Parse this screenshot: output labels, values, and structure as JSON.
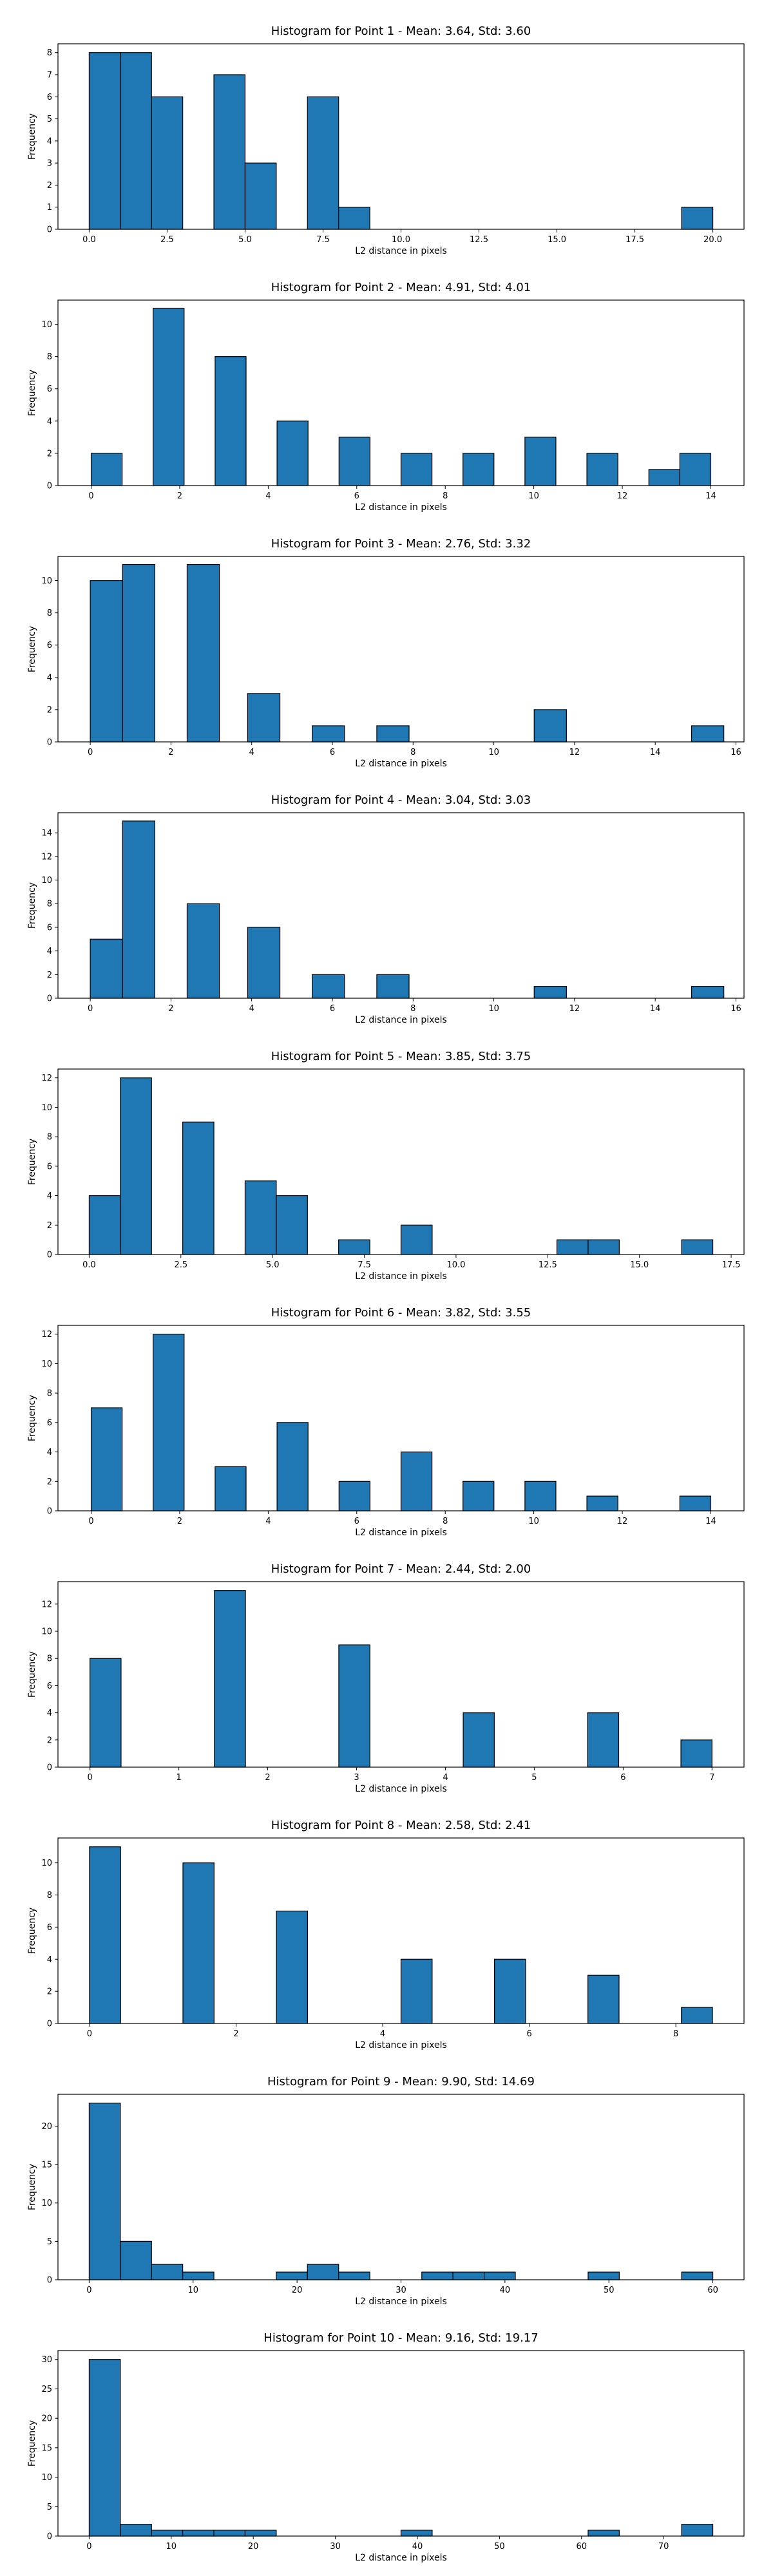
{
  "colors": {
    "bar": "#1f77b4",
    "edge": "#000000",
    "background": "#ffffff"
  },
  "chart_data": [
    {
      "type": "bar",
      "title": "Histogram for Point 1 - Mean: 3.64, Std: 3.60",
      "xlabel": "L2 distance in pixels",
      "ylabel": "Frequency",
      "xlim": [
        -1.0,
        21.0
      ],
      "ylim": [
        0,
        8.4
      ],
      "xticks": [
        0.0,
        2.5,
        5.0,
        7.5,
        10.0,
        12.5,
        15.0,
        17.5,
        20.0
      ],
      "xtick_labels": [
        "0.0",
        "2.5",
        "5.0",
        "7.5",
        "10.0",
        "12.5",
        "15.0",
        "17.5",
        "20.0"
      ],
      "yticks": [
        0,
        1,
        2,
        3,
        4,
        5,
        6,
        7,
        8
      ],
      "ytick_labels": [
        "0",
        "1",
        "2",
        "3",
        "4",
        "5",
        "6",
        "7",
        "8"
      ],
      "bin_width": 1.0,
      "bins": [
        {
          "x": 0.0,
          "count": 8
        },
        {
          "x": 1.0,
          "count": 8
        },
        {
          "x": 2.0,
          "count": 6
        },
        {
          "x": 4.0,
          "count": 7
        },
        {
          "x": 5.0,
          "count": 3
        },
        {
          "x": 7.0,
          "count": 6
        },
        {
          "x": 8.0,
          "count": 1
        },
        {
          "x": 19.0,
          "count": 1
        }
      ]
    },
    {
      "type": "bar",
      "title": "Histogram for Point 2 - Mean: 4.91, Std: 4.01",
      "xlabel": "L2 distance in pixels",
      "ylabel": "Frequency",
      "xlim": [
        -0.75,
        14.75
      ],
      "ylim": [
        0,
        11.5
      ],
      "xticks": [
        0,
        2,
        4,
        6,
        8,
        10,
        12,
        14
      ],
      "xtick_labels": [
        "0",
        "2",
        "4",
        "6",
        "8",
        "10",
        "12",
        "14"
      ],
      "yticks": [
        0,
        2,
        4,
        6,
        8,
        10
      ],
      "ytick_labels": [
        "0",
        "2",
        "4",
        "6",
        "8",
        "10"
      ],
      "bin_width": 0.7,
      "bins": [
        {
          "x": 0.0,
          "count": 2
        },
        {
          "x": 1.4,
          "count": 11
        },
        {
          "x": 2.8,
          "count": 8
        },
        {
          "x": 4.2,
          "count": 4
        },
        {
          "x": 5.6,
          "count": 3
        },
        {
          "x": 7.0,
          "count": 2
        },
        {
          "x": 8.4,
          "count": 2
        },
        {
          "x": 9.8,
          "count": 3
        },
        {
          "x": 11.2,
          "count": 2
        },
        {
          "x": 12.6,
          "count": 1
        },
        {
          "x": 13.3,
          "count": 2
        }
      ]
    },
    {
      "type": "bar",
      "title": "Histogram for Point 3 - Mean: 2.76, Std: 3.32",
      "xlabel": "L2 distance in pixels",
      "ylabel": "Frequency",
      "xlim": [
        -0.8,
        16.2
      ],
      "ylim": [
        0,
        11.5
      ],
      "xticks": [
        0,
        2,
        4,
        6,
        8,
        10,
        12,
        14,
        16
      ],
      "xtick_labels": [
        "0",
        "2",
        "4",
        "6",
        "8",
        "10",
        "12",
        "14",
        "16"
      ],
      "yticks": [
        0,
        2,
        4,
        6,
        8,
        10
      ],
      "ytick_labels": [
        "0",
        "2",
        "4",
        "6",
        "8",
        "10"
      ],
      "bin_width": 0.8,
      "bins": [
        {
          "x": 0.0,
          "count": 10
        },
        {
          "x": 0.8,
          "count": 11
        },
        {
          "x": 2.4,
          "count": 11
        },
        {
          "x": 3.9,
          "count": 3
        },
        {
          "x": 5.5,
          "count": 1
        },
        {
          "x": 7.1,
          "count": 1
        },
        {
          "x": 11.0,
          "count": 2
        },
        {
          "x": 14.9,
          "count": 1
        }
      ]
    },
    {
      "type": "bar",
      "title": "Histogram for Point 4 - Mean: 3.04, Std: 3.03",
      "xlabel": "L2 distance in pixels",
      "ylabel": "Frequency",
      "xlim": [
        -0.8,
        16.2
      ],
      "ylim": [
        0,
        15.7
      ],
      "xticks": [
        0,
        2,
        4,
        6,
        8,
        10,
        12,
        14,
        16
      ],
      "xtick_labels": [
        "0",
        "2",
        "4",
        "6",
        "8",
        "10",
        "12",
        "14",
        "16"
      ],
      "yticks": [
        0,
        2,
        4,
        6,
        8,
        10,
        12,
        14
      ],
      "ytick_labels": [
        "0",
        "2",
        "4",
        "6",
        "8",
        "10",
        "12",
        "14"
      ],
      "bin_width": 0.8,
      "bins": [
        {
          "x": 0.0,
          "count": 5
        },
        {
          "x": 0.8,
          "count": 15
        },
        {
          "x": 2.4,
          "count": 8
        },
        {
          "x": 3.9,
          "count": 6
        },
        {
          "x": 5.5,
          "count": 2
        },
        {
          "x": 7.1,
          "count": 2
        },
        {
          "x": 11.0,
          "count": 1
        },
        {
          "x": 14.9,
          "count": 1
        }
      ]
    },
    {
      "type": "bar",
      "title": "Histogram for Point 5 - Mean: 3.85, Std: 3.75",
      "xlabel": "L2 distance in pixels",
      "ylabel": "Frequency",
      "xlim": [
        -0.85,
        17.85
      ],
      "ylim": [
        0,
        12.6
      ],
      "xticks": [
        0.0,
        2.5,
        5.0,
        7.5,
        10.0,
        12.5,
        15.0,
        17.5
      ],
      "xtick_labels": [
        "0.0",
        "2.5",
        "5.0",
        "7.5",
        "10.0",
        "12.5",
        "15.0",
        "17.5"
      ],
      "yticks": [
        0,
        2,
        4,
        6,
        8,
        10,
        12
      ],
      "ytick_labels": [
        "0",
        "2",
        "4",
        "6",
        "8",
        "10",
        "12"
      ],
      "bin_width": 0.85,
      "bins": [
        {
          "x": 0.0,
          "count": 4
        },
        {
          "x": 0.85,
          "count": 12
        },
        {
          "x": 2.55,
          "count": 9
        },
        {
          "x": 4.25,
          "count": 5
        },
        {
          "x": 5.1,
          "count": 4
        },
        {
          "x": 6.8,
          "count": 1
        },
        {
          "x": 8.5,
          "count": 2
        },
        {
          "x": 12.75,
          "count": 1
        },
        {
          "x": 13.6,
          "count": 1
        },
        {
          "x": 16.15,
          "count": 1
        }
      ]
    },
    {
      "type": "bar",
      "title": "Histogram for Point 6 - Mean: 3.82, Std: 3.55",
      "xlabel": "L2 distance in pixels",
      "ylabel": "Frequency",
      "xlim": [
        -0.75,
        14.75
      ],
      "ylim": [
        0,
        12.6
      ],
      "xticks": [
        0,
        2,
        4,
        6,
        8,
        10,
        12,
        14
      ],
      "xtick_labels": [
        "0",
        "2",
        "4",
        "6",
        "8",
        "10",
        "12",
        "14"
      ],
      "yticks": [
        0,
        2,
        4,
        6,
        8,
        10,
        12
      ],
      "ytick_labels": [
        "0",
        "2",
        "4",
        "6",
        "8",
        "10",
        "12"
      ],
      "bin_width": 0.7,
      "bins": [
        {
          "x": 0.0,
          "count": 7
        },
        {
          "x": 1.4,
          "count": 12
        },
        {
          "x": 2.8,
          "count": 3
        },
        {
          "x": 4.2,
          "count": 6
        },
        {
          "x": 5.6,
          "count": 2
        },
        {
          "x": 7.0,
          "count": 4
        },
        {
          "x": 8.4,
          "count": 2
        },
        {
          "x": 9.8,
          "count": 2
        },
        {
          "x": 11.2,
          "count": 1
        },
        {
          "x": 13.3,
          "count": 1
        }
      ]
    },
    {
      "type": "bar",
      "title": "Histogram for Point 7 - Mean: 2.44, Std: 2.00",
      "xlabel": "L2 distance in pixels",
      "ylabel": "Frequency",
      "xlim": [
        -0.36,
        7.36
      ],
      "ylim": [
        0,
        13.65
      ],
      "xticks": [
        0,
        1,
        2,
        3,
        4,
        5,
        6,
        7
      ],
      "xtick_labels": [
        "0",
        "1",
        "2",
        "3",
        "4",
        "5",
        "6",
        "7"
      ],
      "yticks": [
        0,
        2,
        4,
        6,
        8,
        10,
        12
      ],
      "ytick_labels": [
        "0",
        "2",
        "4",
        "6",
        "8",
        "10",
        "12"
      ],
      "bin_width": 0.35,
      "bins": [
        {
          "x": 0.0,
          "count": 8
        },
        {
          "x": 1.4,
          "count": 13
        },
        {
          "x": 2.8,
          "count": 9
        },
        {
          "x": 4.2,
          "count": 4
        },
        {
          "x": 5.6,
          "count": 4
        },
        {
          "x": 6.65,
          "count": 2
        }
      ]
    },
    {
      "type": "bar",
      "title": "Histogram for Point 8 - Mean: 2.58, Std: 2.41",
      "xlabel": "L2 distance in pixels",
      "ylabel": "Frequency",
      "xlim": [
        -0.43,
        8.93
      ],
      "ylim": [
        0,
        11.55
      ],
      "xticks": [
        0,
        2,
        4,
        6,
        8
      ],
      "xtick_labels": [
        "0",
        "2",
        "4",
        "6",
        "8"
      ],
      "yticks": [
        0,
        2,
        4,
        6,
        8,
        10
      ],
      "ytick_labels": [
        "0",
        "2",
        "4",
        "6",
        "8",
        "10"
      ],
      "bin_width": 0.425,
      "bins": [
        {
          "x": 0.0,
          "count": 11
        },
        {
          "x": 1.275,
          "count": 10
        },
        {
          "x": 2.55,
          "count": 7
        },
        {
          "x": 4.25,
          "count": 4
        },
        {
          "x": 5.525,
          "count": 4
        },
        {
          "x": 6.8,
          "count": 3
        },
        {
          "x": 8.075,
          "count": 1
        }
      ]
    },
    {
      "type": "bar",
      "title": "Histogram for Point 9 - Mean: 9.90, Std: 14.69",
      "xlabel": "L2 distance in pixels",
      "ylabel": "Frequency",
      "xlim": [
        -3.0,
        63.0
      ],
      "ylim": [
        0,
        24.15
      ],
      "xticks": [
        0,
        10,
        20,
        30,
        40,
        50,
        60
      ],
      "xtick_labels": [
        "0",
        "10",
        "20",
        "30",
        "40",
        "50",
        "60"
      ],
      "yticks": [
        0,
        5,
        10,
        15,
        20
      ],
      "ytick_labels": [
        "0",
        "5",
        "10",
        "15",
        "20"
      ],
      "bin_width": 3.0,
      "bins": [
        {
          "x": 0.0,
          "count": 23
        },
        {
          "x": 3.0,
          "count": 5
        },
        {
          "x": 6.0,
          "count": 2
        },
        {
          "x": 9.0,
          "count": 1
        },
        {
          "x": 18.0,
          "count": 1
        },
        {
          "x": 21.0,
          "count": 2
        },
        {
          "x": 24.0,
          "count": 1
        },
        {
          "x": 32.0,
          "count": 1
        },
        {
          "x": 35.0,
          "count": 1
        },
        {
          "x": 38.0,
          "count": 1
        },
        {
          "x": 48.0,
          "count": 1
        },
        {
          "x": 57.0,
          "count": 1
        }
      ]
    },
    {
      "type": "bar",
      "title": "Histogram for Point 10 - Mean: 9.16, Std: 19.17",
      "xlabel": "L2 distance in pixels",
      "ylabel": "Frequency",
      "xlim": [
        -3.8,
        79.8
      ],
      "ylim": [
        0,
        31.5
      ],
      "xticks": [
        0,
        10,
        20,
        30,
        40,
        50,
        60,
        70
      ],
      "xtick_labels": [
        "0",
        "10",
        "20",
        "30",
        "40",
        "50",
        "60",
        "70"
      ],
      "yticks": [
        0,
        5,
        10,
        15,
        20,
        25,
        30
      ],
      "ytick_labels": [
        "0",
        "5",
        "10",
        "15",
        "20",
        "25",
        "30"
      ],
      "bin_width": 3.8,
      "bins": [
        {
          "x": 0.0,
          "count": 30
        },
        {
          "x": 3.8,
          "count": 2
        },
        {
          "x": 7.6,
          "count": 1
        },
        {
          "x": 11.4,
          "count": 1
        },
        {
          "x": 15.2,
          "count": 1
        },
        {
          "x": 19.0,
          "count": 1
        },
        {
          "x": 38.0,
          "count": 1
        },
        {
          "x": 60.8,
          "count": 1
        },
        {
          "x": 72.2,
          "count": 2
        }
      ]
    }
  ]
}
